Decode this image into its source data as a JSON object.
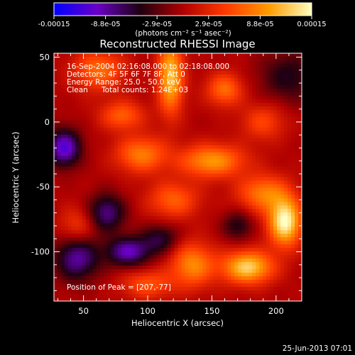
{
  "chart_data": {
    "type": "heatmap",
    "title": "Reconstructed RHESSI Image",
    "xlabel": "Heliocentric X (arcsec)",
    "ylabel": "Heliocentric Y (arcsec)",
    "xlim": [
      27,
      220
    ],
    "ylim": [
      -138,
      53
    ],
    "x_ticks": [
      50,
      100,
      150,
      200
    ],
    "y_ticks": [
      50,
      0,
      -50,
      -100
    ],
    "colorbar": {
      "ticks": [
        "-0.00015",
        "-8.8e-05",
        "-2.9e-05",
        "2.9e-05",
        "8.8e-05",
        "0.00015"
      ],
      "min": -0.00015,
      "max": 0.00015,
      "unit_label": "(photons cm⁻² s⁻¹ asec⁻²)",
      "colors": [
        "#0000ff",
        "#6a00c8",
        "#1e0010",
        "#b00000",
        "#ff3a00",
        "#ff9a00",
        "#ffffc0"
      ]
    },
    "annotations": {
      "time_range": "16-Sep-2004 02:16:08.000 to 02:18:08.000",
      "detectors": "Detectors: 4F 5F 6F 7F 8F, Att 0",
      "energy": "Energy Range: 25.0 - 50.0 keV",
      "method": "Clean",
      "counts": "Total counts: 1.24E+03",
      "peak": "Position of Peak = [207,-77]"
    },
    "peak": {
      "x": 207,
      "y": -77
    },
    "sources": [
      {
        "x": 207,
        "y": -77,
        "amp": 1.0,
        "sx": 9,
        "sy": 13
      },
      {
        "x": 178,
        "y": -112,
        "amp": 0.85,
        "sx": 14,
        "sy": 9
      },
      {
        "x": 118,
        "y": 35,
        "amp": 0.8,
        "sx": 7,
        "sy": 20
      },
      {
        "x": 150,
        "y": -30,
        "amp": 0.65,
        "sx": 18,
        "sy": 9
      },
      {
        "x": 190,
        "y": -55,
        "amp": 0.55,
        "sx": 14,
        "sy": 10
      },
      {
        "x": 135,
        "y": -110,
        "amp": 0.6,
        "sx": 12,
        "sy": 12
      },
      {
        "x": 160,
        "y": 25,
        "amp": 0.5,
        "sx": 10,
        "sy": 9
      },
      {
        "x": 95,
        "y": -25,
        "amp": 0.55,
        "sx": 14,
        "sy": 10
      },
      {
        "x": 62,
        "y": 40,
        "amp": 0.5,
        "sx": 14,
        "sy": 11
      },
      {
        "x": 80,
        "y": 5,
        "amp": 0.45,
        "sx": 12,
        "sy": 8
      },
      {
        "x": 120,
        "y": -60,
        "amp": 0.45,
        "sx": 14,
        "sy": 10
      },
      {
        "x": 100,
        "y": -125,
        "amp": 0.4,
        "sx": 14,
        "sy": 8
      },
      {
        "x": 190,
        "y": 0,
        "amp": 0.35,
        "sx": 12,
        "sy": 10
      },
      {
        "x": 45,
        "y": -80,
        "amp": 0.3,
        "sx": 10,
        "sy": 10
      },
      {
        "x": 35,
        "y": -20,
        "amp": -0.75,
        "sx": 9,
        "sy": 10
      },
      {
        "x": 45,
        "y": -105,
        "amp": -0.6,
        "sx": 12,
        "sy": 12
      },
      {
        "x": 85,
        "y": -100,
        "amp": -0.65,
        "sx": 12,
        "sy": 8
      },
      {
        "x": 68,
        "y": -70,
        "amp": -0.55,
        "sx": 10,
        "sy": 10
      },
      {
        "x": 110,
        "y": -90,
        "amp": -0.4,
        "sx": 10,
        "sy": 8
      },
      {
        "x": 210,
        "y": 35,
        "amp": -0.35,
        "sx": 16,
        "sy": 14
      },
      {
        "x": 170,
        "y": -80,
        "amp": -0.35,
        "sx": 8,
        "sy": 8
      }
    ]
  },
  "footer": {
    "date": "25-Jun-2013 07:01"
  }
}
